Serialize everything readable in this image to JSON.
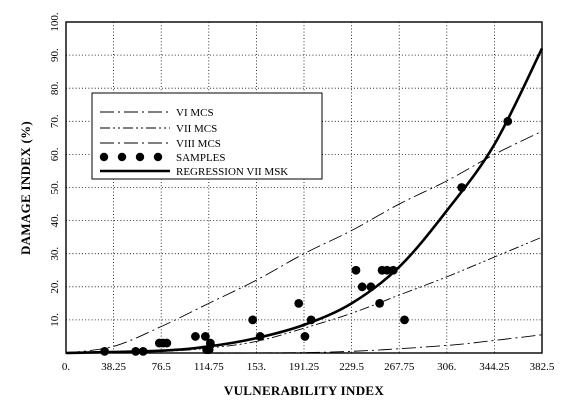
{
  "chart_data": {
    "type": "scatter",
    "title": "",
    "xlabel": "VULNERABILITY INDEX",
    "ylabel": "DAMAGE INDEX (%)",
    "xlim": [
      0,
      382.5
    ],
    "ylim": [
      0,
      100
    ],
    "x_ticks": [
      "0.",
      "38.25",
      "76.5",
      "114.75",
      "153.",
      "191.25",
      "229.5",
      "267.75",
      "306.",
      "344.25",
      "382.5"
    ],
    "y_ticks": [
      "10.",
      "20.",
      "30.",
      "40.",
      "50.",
      "60.",
      "70.",
      "80.",
      "90.",
      "100."
    ],
    "grid": true,
    "legend_placement": "upper-left",
    "series": [
      {
        "name": "VI MCS",
        "kind": "line",
        "style": "dash-dot",
        "x": [
          0,
          76.5,
          153,
          229.5,
          306,
          344.25,
          382.5
        ],
        "y": [
          0,
          0,
          0,
          0.5,
          2.3,
          3.8,
          5.5
        ]
      },
      {
        "name": "VII MCS",
        "kind": "line",
        "style": "dash-dot-dot",
        "x": [
          0,
          76.5,
          114.75,
          153,
          191.25,
          229.5,
          267.75,
          306,
          344.25,
          382.5
        ],
        "y": [
          0,
          0.5,
          1.5,
          3.5,
          7.5,
          12,
          17.5,
          23,
          29,
          35
        ]
      },
      {
        "name": "VIII MCS",
        "kind": "line",
        "style": "dash-dot",
        "x": [
          0,
          38.25,
          76.5,
          114.75,
          153,
          191.25,
          229.5,
          267.75,
          306,
          344.25,
          382.5
        ],
        "y": [
          0,
          2,
          8,
          15,
          22,
          30,
          37,
          45,
          52,
          60,
          67
        ]
      },
      {
        "name": "SAMPLES",
        "kind": "scatter",
        "x": [
          31,
          62,
          56,
          75,
          78,
          81,
          104,
          112,
          113,
          116,
          115,
          150,
          156,
          187,
          192,
          197,
          233,
          238,
          245,
          252,
          254,
          258,
          263,
          272,
          318,
          355
        ],
        "y": [
          0.5,
          0.5,
          0.5,
          3,
          3,
          3,
          5,
          5,
          1,
          3,
          1,
          10,
          5,
          15,
          5,
          10,
          25,
          20,
          20,
          15,
          25,
          25,
          25,
          10,
          50,
          70
        ]
      },
      {
        "name": "REGRESSION VII MSK",
        "kind": "line",
        "style": "solid-bold",
        "x": [
          0,
          76.5,
          114.75,
          153,
          191.25,
          229.5,
          267.75,
          306,
          344.25,
          382.5
        ],
        "y": [
          0,
          0.7,
          2,
          4.5,
          8.5,
          15,
          26,
          43,
          63,
          92
        ]
      }
    ]
  }
}
